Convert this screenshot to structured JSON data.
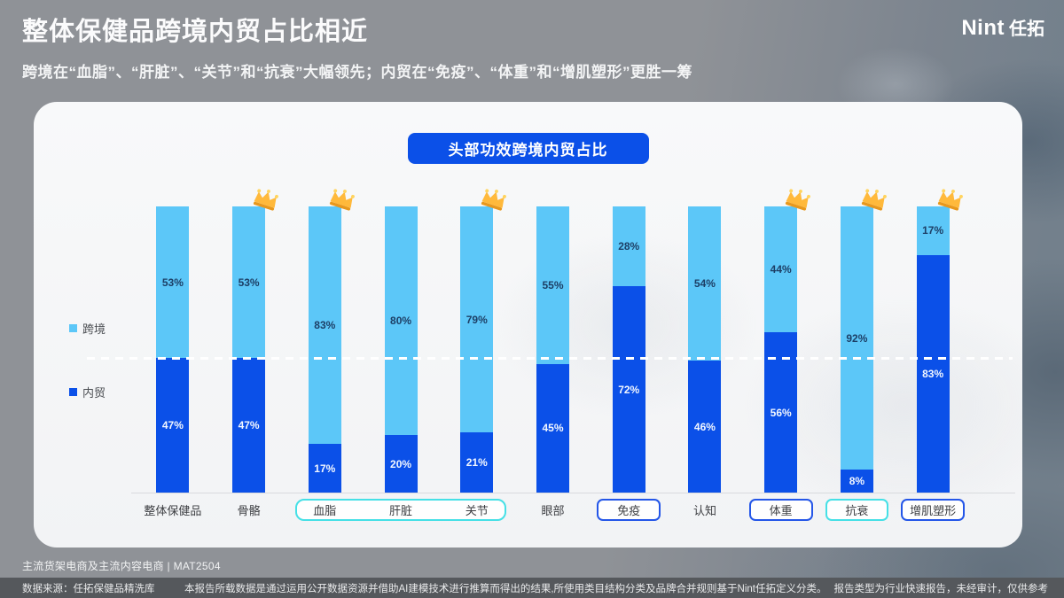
{
  "header": {
    "title": "整体保健品跨境内贸占比相近",
    "subtitle": "跨境在“血脂”、“肝脏”、“关节”和“抗衰”大幅领先；内贸在“免疫”、“体重”和“增肌塑形”更胜一筹",
    "logo_brand": "Nint",
    "logo_brand_cn": "任拓"
  },
  "chart_data": {
    "type": "bar",
    "stacked": true,
    "percent_stacked": true,
    "title": "头部功效跨境内贸占比",
    "categories": [
      "整体保健品",
      "骨骼",
      "血脂",
      "肝脏",
      "关节",
      "眼部",
      "免疫",
      "认知",
      "体重",
      "抗衰",
      "增肌塑形"
    ],
    "series": [
      {
        "name": "跨境",
        "position": "top",
        "color": "#5cc7f8",
        "values": [
          53,
          53,
          83,
          80,
          79,
          55,
          28,
          54,
          44,
          92,
          17
        ]
      },
      {
        "name": "内贸",
        "position": "bottom",
        "color": "#0b50e8",
        "values": [
          47,
          47,
          17,
          20,
          21,
          45,
          72,
          46,
          56,
          8,
          83
        ]
      }
    ],
    "unit": "%",
    "ylim": [
      0,
      100
    ],
    "grid": false,
    "legend_position": "left",
    "reference_line": {
      "value": 47,
      "unit": "%",
      "style": "dashed",
      "color": "#ffffff"
    },
    "crowned_categories": [
      "骨骼",
      "血脂",
      "关节",
      "体重",
      "抗衰",
      "增肌塑形"
    ],
    "highlight_boxes": [
      {
        "categories": [
          "血脂",
          "肝脏",
          "关节"
        ],
        "style": "cyan"
      },
      {
        "categories": [
          "免疫"
        ],
        "style": "blue"
      },
      {
        "categories": [
          "体重"
        ],
        "style": "blue"
      },
      {
        "categories": [
          "抗衰"
        ],
        "style": "cyan"
      },
      {
        "categories": [
          "增肌塑形"
        ],
        "style": "blue"
      }
    ]
  },
  "footer": {
    "scope_note": "主流货架电商及主流内容电商 | MAT2504",
    "source": "数据来源：任拓保健品精洗库",
    "disclaimer": "本报告所载数据是通过运用公开数据资源并借助AI建模技术进行推算而得出的结果,所使用类目结构分类及品牌合并规则基于Nint任拓定义分类。",
    "report_type": "报告类型为行业快速报告，未经审计，仅供参考"
  },
  "colors": {
    "cross_border_sky_blue": "#5cc7f8",
    "domestic_navy_blue": "#0b50e8",
    "pill_blue": "#0b50e8",
    "cyan_box_border": "#45e0e6",
    "blue_box_border": "#2456e8",
    "crown_gold": "#ffb93b",
    "slide_gray": "#8f9297",
    "card_white": "#f5f6f7"
  }
}
